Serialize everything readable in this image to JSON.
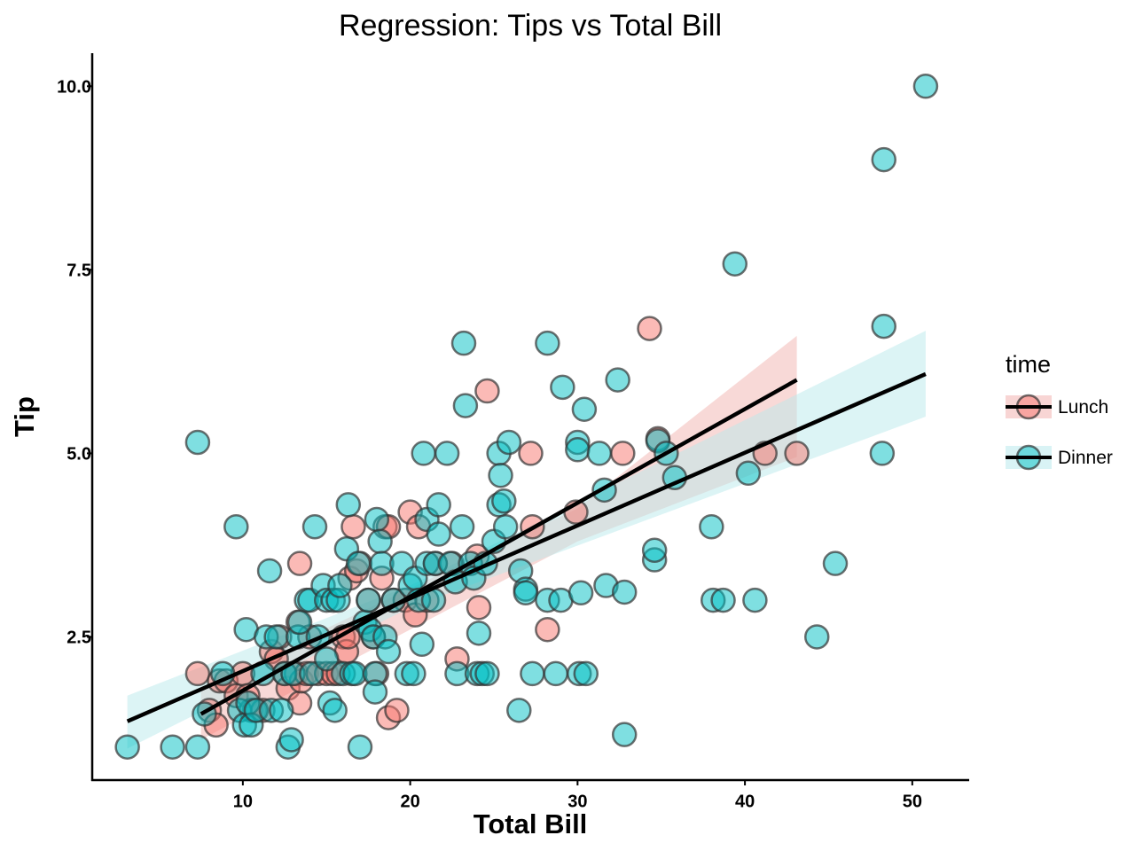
{
  "chart_data": {
    "type": "scatter",
    "title": "Regression: Tips vs Total Bill",
    "xlabel": "Total Bill",
    "ylabel": "Tip",
    "xlim": [
      1,
      53.4
    ],
    "ylim": [
      0.55,
      10.45
    ],
    "xticks": [
      10,
      20,
      30,
      40,
      50
    ],
    "xtick_labels": [
      "10",
      "20",
      "30",
      "40",
      "50"
    ],
    "yticks": [
      2.5,
      5.0,
      7.5,
      10.0
    ],
    "ytick_labels": [
      "2.5",
      "5.0",
      "7.5",
      "10.0"
    ],
    "legend": {
      "title": "time",
      "position": "right"
    },
    "series": [
      {
        "name": "Lunch",
        "color": "#f8766d",
        "band_color": "#f2b3b0",
        "fit": {
          "x": [
            7.5,
            43.1
          ],
          "y": [
            1.45,
            6.0
          ]
        },
        "ci": {
          "x": [
            7.5,
            30.0,
            43.1
          ],
          "lower": [
            1.1,
            3.8,
            4.95
          ],
          "upper": [
            1.8,
            4.25,
            6.6
          ]
        },
        "points": [
          [
            7.3,
            2.0
          ],
          [
            8.0,
            1.5
          ],
          [
            8.4,
            1.3
          ],
          [
            8.6,
            1.9
          ],
          [
            9.0,
            1.9
          ],
          [
            9.6,
            1.7
          ],
          [
            10.0,
            2.0
          ],
          [
            10.3,
            1.7
          ],
          [
            10.5,
            1.5
          ],
          [
            10.7,
            1.5
          ],
          [
            11.2,
            1.5
          ],
          [
            11.7,
            2.3
          ],
          [
            12.0,
            2.2
          ],
          [
            12.2,
            2.5
          ],
          [
            12.5,
            2.0
          ],
          [
            12.7,
            1.8
          ],
          [
            13.0,
            2.0
          ],
          [
            13.2,
            2.0
          ],
          [
            13.3,
            2.7
          ],
          [
            13.4,
            3.5
          ],
          [
            13.4,
            1.6
          ],
          [
            13.5,
            1.9
          ],
          [
            13.8,
            2.0
          ],
          [
            14.0,
            2.5
          ],
          [
            14.5,
            2.0
          ],
          [
            15.0,
            2.0
          ],
          [
            15.4,
            2.0
          ],
          [
            15.7,
            2.0
          ],
          [
            16.0,
            2.5
          ],
          [
            16.2,
            2.3
          ],
          [
            16.3,
            2.5
          ],
          [
            16.4,
            3.3
          ],
          [
            16.6,
            4.0
          ],
          [
            16.8,
            3.4
          ],
          [
            17.0,
            3.5
          ],
          [
            17.5,
            3.0
          ],
          [
            17.8,
            2.5
          ],
          [
            18.0,
            2.0
          ],
          [
            18.3,
            3.3
          ],
          [
            18.5,
            4.0
          ],
          [
            18.7,
            1.4
          ],
          [
            18.7,
            4.0
          ],
          [
            19.0,
            3.0
          ],
          [
            19.2,
            1.5
          ],
          [
            19.7,
            3.0
          ],
          [
            20.0,
            4.2
          ],
          [
            20.3,
            2.8
          ],
          [
            20.5,
            4.0
          ],
          [
            21.0,
            3.0
          ],
          [
            21.5,
            3.5
          ],
          [
            22.5,
            3.5
          ],
          [
            22.8,
            2.2
          ],
          [
            24.0,
            3.6
          ],
          [
            24.1,
            2.9
          ],
          [
            24.6,
            5.85
          ],
          [
            27.2,
            5.0
          ],
          [
            27.3,
            4.0
          ],
          [
            28.2,
            2.6
          ],
          [
            29.9,
            4.2
          ],
          [
            32.7,
            5.0
          ],
          [
            34.3,
            6.7
          ],
          [
            34.8,
            5.2
          ],
          [
            41.2,
            5.0
          ],
          [
            43.1,
            5.0
          ]
        ]
      },
      {
        "name": "Dinner",
        "color": "#00bfc4",
        "band_color": "#b9e9ec",
        "fit": {
          "x": [
            3.1,
            50.8
          ],
          "y": [
            1.35,
            6.08
          ]
        },
        "ci": {
          "x": [
            3.1,
            20.0,
            50.8
          ],
          "lower": [
            0.98,
            2.9,
            5.5
          ],
          "upper": [
            1.7,
            3.2,
            6.67
          ]
        },
        "points": [
          [
            3.1,
            1.0
          ],
          [
            5.8,
            1.0
          ],
          [
            7.3,
            1.0
          ],
          [
            7.3,
            5.15
          ],
          [
            7.7,
            1.45
          ],
          [
            8.8,
            2.0
          ],
          [
            9.6,
            4.0
          ],
          [
            9.8,
            1.5
          ],
          [
            10.1,
            1.3
          ],
          [
            10.2,
            2.6
          ],
          [
            10.3,
            1.6
          ],
          [
            10.5,
            1.3
          ],
          [
            10.8,
            1.5
          ],
          [
            11.2,
            2.0
          ],
          [
            11.4,
            2.5
          ],
          [
            11.6,
            3.4
          ],
          [
            11.7,
            1.5
          ],
          [
            12.0,
            2.5
          ],
          [
            12.3,
            1.5
          ],
          [
            12.5,
            2.0
          ],
          [
            12.7,
            1.0
          ],
          [
            12.9,
            1.1
          ],
          [
            13.0,
            2.0
          ],
          [
            13.3,
            2.5
          ],
          [
            13.4,
            2.7
          ],
          [
            13.8,
            3.0
          ],
          [
            14.0,
            3.0
          ],
          [
            14.1,
            2.0
          ],
          [
            14.3,
            4.0
          ],
          [
            14.5,
            2.5
          ],
          [
            14.8,
            3.2
          ],
          [
            15.0,
            3.0
          ],
          [
            15.0,
            2.2
          ],
          [
            15.2,
            1.6
          ],
          [
            15.4,
            3.0
          ],
          [
            15.5,
            1.5
          ],
          [
            15.7,
            3.0
          ],
          [
            15.8,
            3.2
          ],
          [
            16.0,
            2.0
          ],
          [
            16.2,
            3.7
          ],
          [
            16.3,
            4.3
          ],
          [
            16.5,
            2.0
          ],
          [
            16.7,
            2.0
          ],
          [
            16.9,
            3.5
          ],
          [
            17.0,
            1.0
          ],
          [
            17.3,
            2.7
          ],
          [
            17.5,
            3.0
          ],
          [
            17.6,
            2.6
          ],
          [
            17.8,
            2.5
          ],
          [
            17.9,
            2.0
          ],
          [
            17.9,
            1.75
          ],
          [
            18.0,
            4.1
          ],
          [
            18.2,
            3.8
          ],
          [
            18.3,
            3.5
          ],
          [
            18.5,
            2.5
          ],
          [
            18.7,
            2.3
          ],
          [
            19.0,
            3.0
          ],
          [
            19.5,
            3.5
          ],
          [
            19.8,
            2.0
          ],
          [
            20.0,
            3.2
          ],
          [
            20.2,
            2.0
          ],
          [
            20.3,
            3.3
          ],
          [
            20.5,
            3.0
          ],
          [
            20.7,
            2.4
          ],
          [
            20.8,
            5.0
          ],
          [
            21.0,
            3.5
          ],
          [
            21.0,
            4.1
          ],
          [
            21.4,
            3.0
          ],
          [
            21.5,
            3.5
          ],
          [
            21.7,
            3.9
          ],
          [
            21.7,
            4.3
          ],
          [
            22.2,
            5.0
          ],
          [
            22.4,
            3.5
          ],
          [
            22.7,
            3.25
          ],
          [
            22.8,
            2.0
          ],
          [
            23.1,
            4.0
          ],
          [
            23.2,
            6.5
          ],
          [
            23.3,
            5.65
          ],
          [
            23.6,
            3.5
          ],
          [
            23.8,
            3.3
          ],
          [
            24.1,
            2.55
          ],
          [
            24.0,
            2.0
          ],
          [
            24.3,
            2.0
          ],
          [
            24.5,
            3.5
          ],
          [
            24.6,
            2.0
          ],
          [
            25.0,
            3.8
          ],
          [
            25.3,
            4.3
          ],
          [
            25.3,
            5.0
          ],
          [
            25.4,
            4.7
          ],
          [
            25.6,
            4.35
          ],
          [
            25.7,
            4.0
          ],
          [
            25.9,
            5.15
          ],
          [
            26.5,
            1.5
          ],
          [
            26.6,
            3.4
          ],
          [
            26.9,
            3.15
          ],
          [
            26.9,
            3.1
          ],
          [
            27.3,
            2.0
          ],
          [
            28.2,
            3.0
          ],
          [
            28.2,
            6.5
          ],
          [
            28.7,
            2.0
          ],
          [
            29.0,
            3.0
          ],
          [
            29.1,
            5.9
          ],
          [
            30.0,
            5.15
          ],
          [
            30.0,
            5.05
          ],
          [
            30.1,
            2.0
          ],
          [
            30.2,
            3.1
          ],
          [
            30.4,
            5.6
          ],
          [
            30.5,
            2.0
          ],
          [
            31.3,
            5.0
          ],
          [
            31.6,
            4.5
          ],
          [
            31.7,
            3.2
          ],
          [
            32.4,
            6.0
          ],
          [
            32.8,
            1.17
          ],
          [
            32.8,
            3.11
          ],
          [
            34.6,
            3.55
          ],
          [
            34.6,
            3.68
          ],
          [
            34.8,
            5.17
          ],
          [
            35.3,
            5.0
          ],
          [
            35.8,
            4.67
          ],
          [
            38.0,
            4.0
          ],
          [
            38.1,
            3.0
          ],
          [
            38.7,
            3.0
          ],
          [
            39.4,
            7.58
          ],
          [
            40.2,
            4.73
          ],
          [
            40.6,
            3.0
          ],
          [
            44.3,
            2.5
          ],
          [
            45.4,
            3.5
          ],
          [
            48.2,
            5.0
          ],
          [
            48.3,
            9.0
          ],
          [
            48.3,
            6.73
          ],
          [
            50.8,
            10.0
          ]
        ]
      }
    ]
  }
}
